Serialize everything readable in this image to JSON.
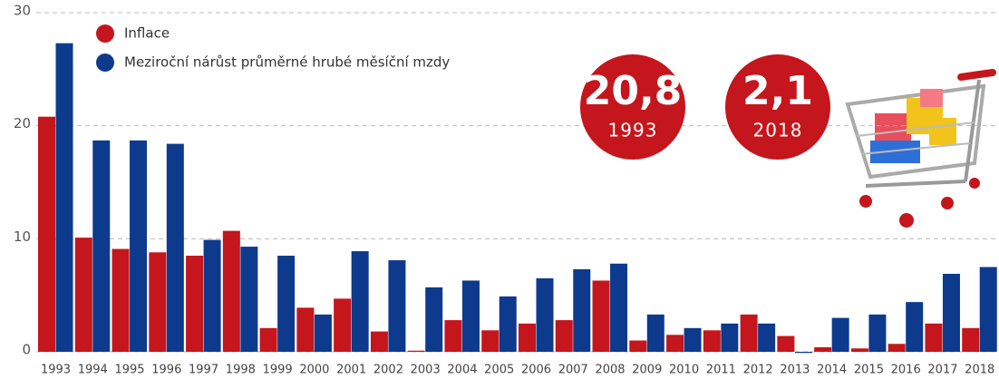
{
  "chart_data": {
    "type": "bar",
    "categories": [
      "1993",
      "1994",
      "1995",
      "1996",
      "1997",
      "1998",
      "1999",
      "2000",
      "2001",
      "2002",
      "2003",
      "2004",
      "2005",
      "2006",
      "2007",
      "2008",
      "2009",
      "2010",
      "2011",
      "2012",
      "2013",
      "2014",
      "2015",
      "2016",
      "2017",
      "2018"
    ],
    "series": [
      {
        "name": "Inflace",
        "color": "#c4161c",
        "values": [
          20.8,
          10.1,
          9.1,
          8.8,
          8.5,
          10.7,
          2.1,
          3.9,
          4.7,
          1.8,
          0.1,
          2.8,
          1.9,
          2.5,
          2.8,
          6.3,
          1.0,
          1.5,
          1.9,
          3.3,
          1.4,
          0.4,
          0.3,
          0.7,
          2.5,
          2.1
        ]
      },
      {
        "name": "Meziroční nárůst průměrné hrubé měsíční mzdy",
        "color": "#0d3a8c",
        "values": [
          27.3,
          18.7,
          18.7,
          18.4,
          9.9,
          9.3,
          8.5,
          3.3,
          8.9,
          8.1,
          5.7,
          6.3,
          4.9,
          6.5,
          7.3,
          7.8,
          3.3,
          2.1,
          2.5,
          2.5,
          -0.1,
          3.0,
          3.3,
          4.4,
          6.9,
          7.5
        ]
      }
    ],
    "ylim": [
      0,
      30
    ],
    "yticks": [
      0,
      10,
      20,
      30
    ],
    "grid": true,
    "annotations": [
      {
        "text": "20,8",
        "label": "1993"
      },
      {
        "text": "2,1",
        "label": "2018"
      }
    ]
  }
}
